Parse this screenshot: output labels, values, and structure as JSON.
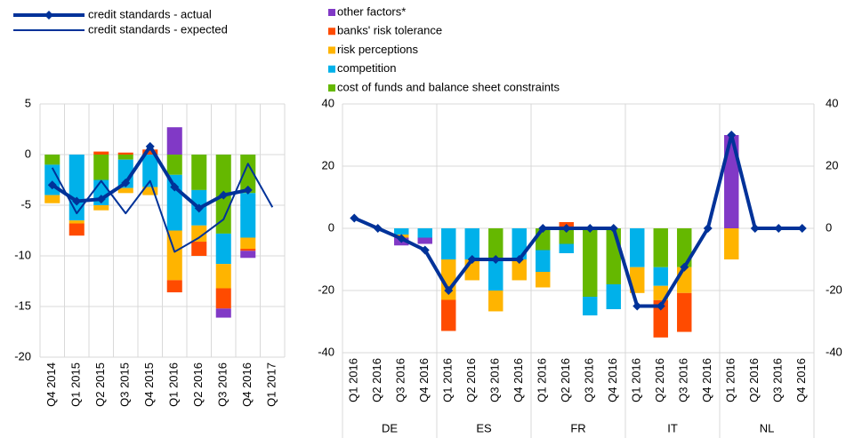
{
  "chart_data": [
    {
      "type": "bar",
      "categories": [
        "Q4 2014",
        "Q1 2015",
        "Q2 2015",
        "Q3 2015",
        "Q4 2015",
        "Q1 2016",
        "Q2 2016",
        "Q3 2016",
        "Q4 2016",
        "Q1 2017"
      ],
      "ylim": [
        -20,
        5
      ],
      "yticks": [
        -20,
        -15,
        -10,
        -5,
        0,
        5
      ],
      "grid": true,
      "series": [
        {
          "name": "cost of funds and balance sheet constraints",
          "mark": "bar",
          "color": "#65b800",
          "values": [
            -1,
            0,
            -2.5,
            -0.5,
            0,
            -2,
            -3.5,
            -7.8,
            -3.8,
            null
          ]
        },
        {
          "name": "competition",
          "mark": "bar",
          "color": "#00b1ea",
          "values": [
            -3,
            -6.5,
            -2.5,
            -2.8,
            -3.2,
            -5.5,
            -3.5,
            -3,
            -4.4,
            null
          ]
        },
        {
          "name": "risk perceptions",
          "mark": "bar",
          "color": "#ffb400",
          "values": [
            -0.8,
            -0.3,
            -0.5,
            -0.5,
            -0.8,
            -4.9,
            -1.6,
            -2.4,
            -1.1,
            null
          ]
        },
        {
          "name": "banks' risk tolerance",
          "mark": "bar",
          "color": "#ff4b00",
          "values": [
            0,
            -1.2,
            0.3,
            0.2,
            0.5,
            -1.2,
            -1.4,
            -2,
            -0.2,
            null
          ]
        },
        {
          "name": "other factors*",
          "mark": "bar",
          "color": "#8139c6",
          "values": [
            0,
            0,
            0,
            0,
            0,
            2.7,
            0,
            -0.9,
            -0.7,
            null
          ]
        },
        {
          "name": "credit standards - actual",
          "mark": "line",
          "color": "#003299",
          "width": 4,
          "values": [
            -3,
            -4.6,
            -4.4,
            -2.8,
            0.8,
            -3.2,
            -5.3,
            -4,
            -3.5,
            null
          ]
        },
        {
          "name": "credit standards - expected",
          "mark": "line",
          "color": "#003299",
          "width": 2,
          "values": [
            -1.3,
            -5.8,
            -2.6,
            -5.8,
            -2.6,
            -9.6,
            -8.2,
            -6.4,
            -0.9,
            -5.2
          ]
        }
      ]
    },
    {
      "type": "bar",
      "groups": [
        "DE",
        "ES",
        "FR",
        "IT",
        "NL"
      ],
      "categories": [
        "Q1 2016",
        "Q2 2016",
        "Q3 2016",
        "Q4 2016",
        "Q1 2016",
        "Q2 2016",
        "Q3 2016",
        "Q4 2016",
        "Q1 2016",
        "Q2 2016",
        "Q3 2016",
        "Q4 2016",
        "Q1 2016",
        "Q2 2016",
        "Q3 2016",
        "Q4 2016",
        "Q1 2016",
        "Q2 2016",
        "Q3 2016",
        "Q4 2016"
      ],
      "ylim": [
        -40,
        40
      ],
      "yticks": [
        -40,
        -20,
        0,
        20,
        40
      ],
      "grid": true,
      "series": [
        {
          "values": [
            0,
            0,
            0,
            0,
            0,
            0,
            -10,
            0,
            -7,
            -5,
            -22,
            -18,
            0,
            -12.5,
            -12.5,
            0,
            0,
            0,
            0,
            0
          ]
        },
        {
          "values": [
            0,
            0,
            -2,
            -3,
            -10,
            -10,
            -10,
            -10,
            -7,
            -3,
            -6,
            -8,
            -12.5,
            -6,
            0,
            0,
            0,
            0,
            0,
            0
          ]
        },
        {
          "values": [
            0,
            0,
            -1,
            0,
            -13,
            -6.7,
            -6.7,
            -6.7,
            -5,
            0,
            0,
            0,
            -8.3,
            -4.6,
            -8.3,
            0,
            -10,
            0,
            0,
            0
          ]
        },
        {
          "values": [
            0,
            0,
            0,
            0,
            -10,
            0,
            0,
            0,
            0,
            2,
            0,
            0,
            0,
            -12,
            -12.5,
            0,
            0,
            0,
            0,
            0
          ]
        },
        {
          "values": [
            0,
            0,
            -2.5,
            -2,
            0,
            0,
            0,
            0,
            0,
            0,
            0,
            0,
            0,
            0,
            0,
            0,
            30,
            0,
            0,
            0
          ]
        },
        {
          "values": [
            3.3,
            0,
            -3.3,
            -7,
            -20,
            -10,
            -10,
            -10,
            0,
            0,
            0,
            0,
            -25,
            -25,
            -12.5,
            0,
            30,
            0,
            0,
            0
          ]
        }
      ]
    }
  ]
}
